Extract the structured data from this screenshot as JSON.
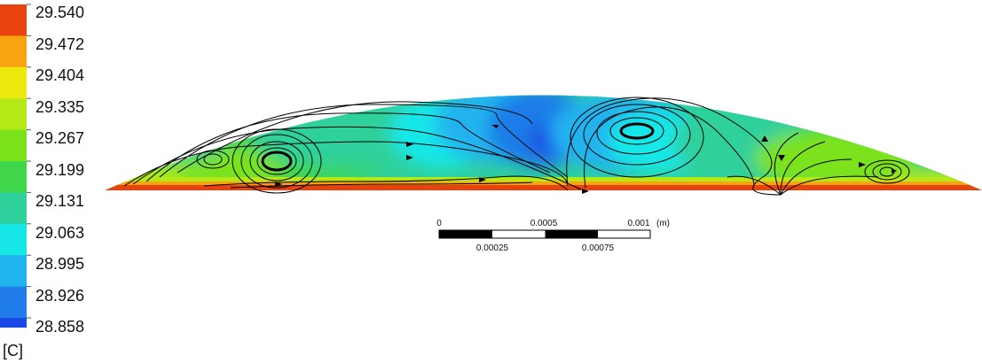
{
  "chart_data": {
    "type": "heatmap",
    "title": "",
    "colorbar": {
      "unit": "[C]",
      "ticks": [
        "29.540",
        "29.472",
        "29.404",
        "29.335",
        "29.267",
        "29.199",
        "29.131",
        "29.063",
        "28.995",
        "28.926",
        "28.858"
      ],
      "colors": [
        "#e8420e",
        "#f7a312",
        "#ede80e",
        "#b5e817",
        "#7be21a",
        "#3fd64a",
        "#2ed09b",
        "#18e7e8",
        "#21b3ee",
        "#1f7ce8",
        "#1a48e6"
      ],
      "min": 28.858,
      "max": 29.54
    },
    "scale_bar": {
      "top_labels": [
        "0",
        "0.0005",
        "0.001"
      ],
      "bottom_labels": [
        "0.00025",
        "0.00075"
      ],
      "unit": "(m)",
      "range_m": [
        0,
        0.001
      ]
    }
  }
}
